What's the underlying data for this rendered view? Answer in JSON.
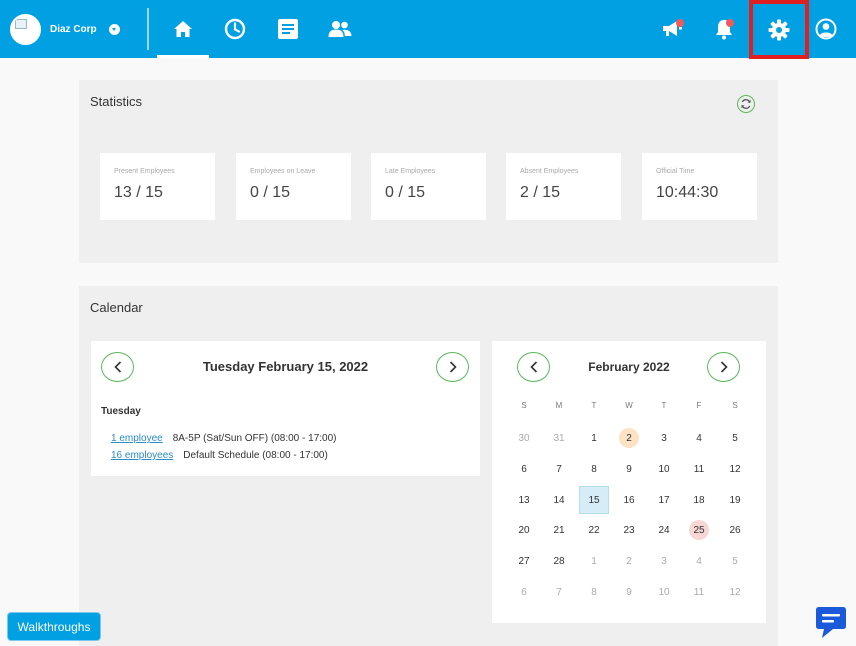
{
  "header": {
    "company_name": "Diaz Corp",
    "nav": [
      {
        "name": "home-icon",
        "active": true
      },
      {
        "name": "clock-icon",
        "active": false
      },
      {
        "name": "document-icon",
        "active": false
      },
      {
        "name": "people-icon",
        "active": false
      }
    ],
    "right_icons": [
      "megaphone-icon",
      "bell-icon",
      "gear-icon",
      "user-icon"
    ],
    "accent": "#00a0e3"
  },
  "statistics": {
    "title": "Statistics",
    "cards": [
      {
        "label": "Present Employees",
        "value": "13 / 15"
      },
      {
        "label": "Employees on Leave",
        "value": "0 / 15"
      },
      {
        "label": "Late Employees",
        "value": "0 / 15"
      },
      {
        "label": "Absent Employees",
        "value": "2 / 15"
      },
      {
        "label": "Official Time",
        "value": "10:44:30"
      }
    ]
  },
  "calendar": {
    "title": "Calendar",
    "day_view": {
      "date_title": "Tuesday February 15, 2022",
      "weekday": "Tuesday",
      "schedules": [
        {
          "link": "1 employee",
          "text": "8A-5P (Sat/Sun OFF) (08:00 - 17:00)"
        },
        {
          "link": "16 employees",
          "text": "Default Schedule (08:00 - 17:00)"
        }
      ]
    },
    "month_view": {
      "title": "February 2022",
      "weekdays": [
        "S",
        "M",
        "T",
        "W",
        "T",
        "F",
        "S"
      ],
      "weeks": [
        [
          "30",
          "31",
          "1",
          "2",
          "3",
          "4",
          "5"
        ],
        [
          "6",
          "7",
          "8",
          "9",
          "10",
          "11",
          "12"
        ],
        [
          "13",
          "14",
          "15",
          "16",
          "17",
          "18",
          "19"
        ],
        [
          "20",
          "21",
          "22",
          "23",
          "24",
          "25",
          "26"
        ],
        [
          "27",
          "28",
          "1",
          "2",
          "3",
          "4",
          "5"
        ],
        [
          "6",
          "7",
          "8",
          "9",
          "10",
          "11",
          "12"
        ]
      ],
      "muted_cells": [
        "0.0",
        "0.1",
        "4.2",
        "4.3",
        "4.4",
        "4.5",
        "4.6",
        "5.0",
        "5.1",
        "5.2",
        "5.3",
        "5.4",
        "5.5",
        "5.6"
      ],
      "today_cell": "2.2",
      "marked_cells": [
        {
          "cell": "0.3",
          "color": "#fde2c4"
        },
        {
          "cell": "3.5",
          "color": "#f8d6d6"
        }
      ]
    }
  },
  "walkthroughs_label": "Walkthroughs"
}
